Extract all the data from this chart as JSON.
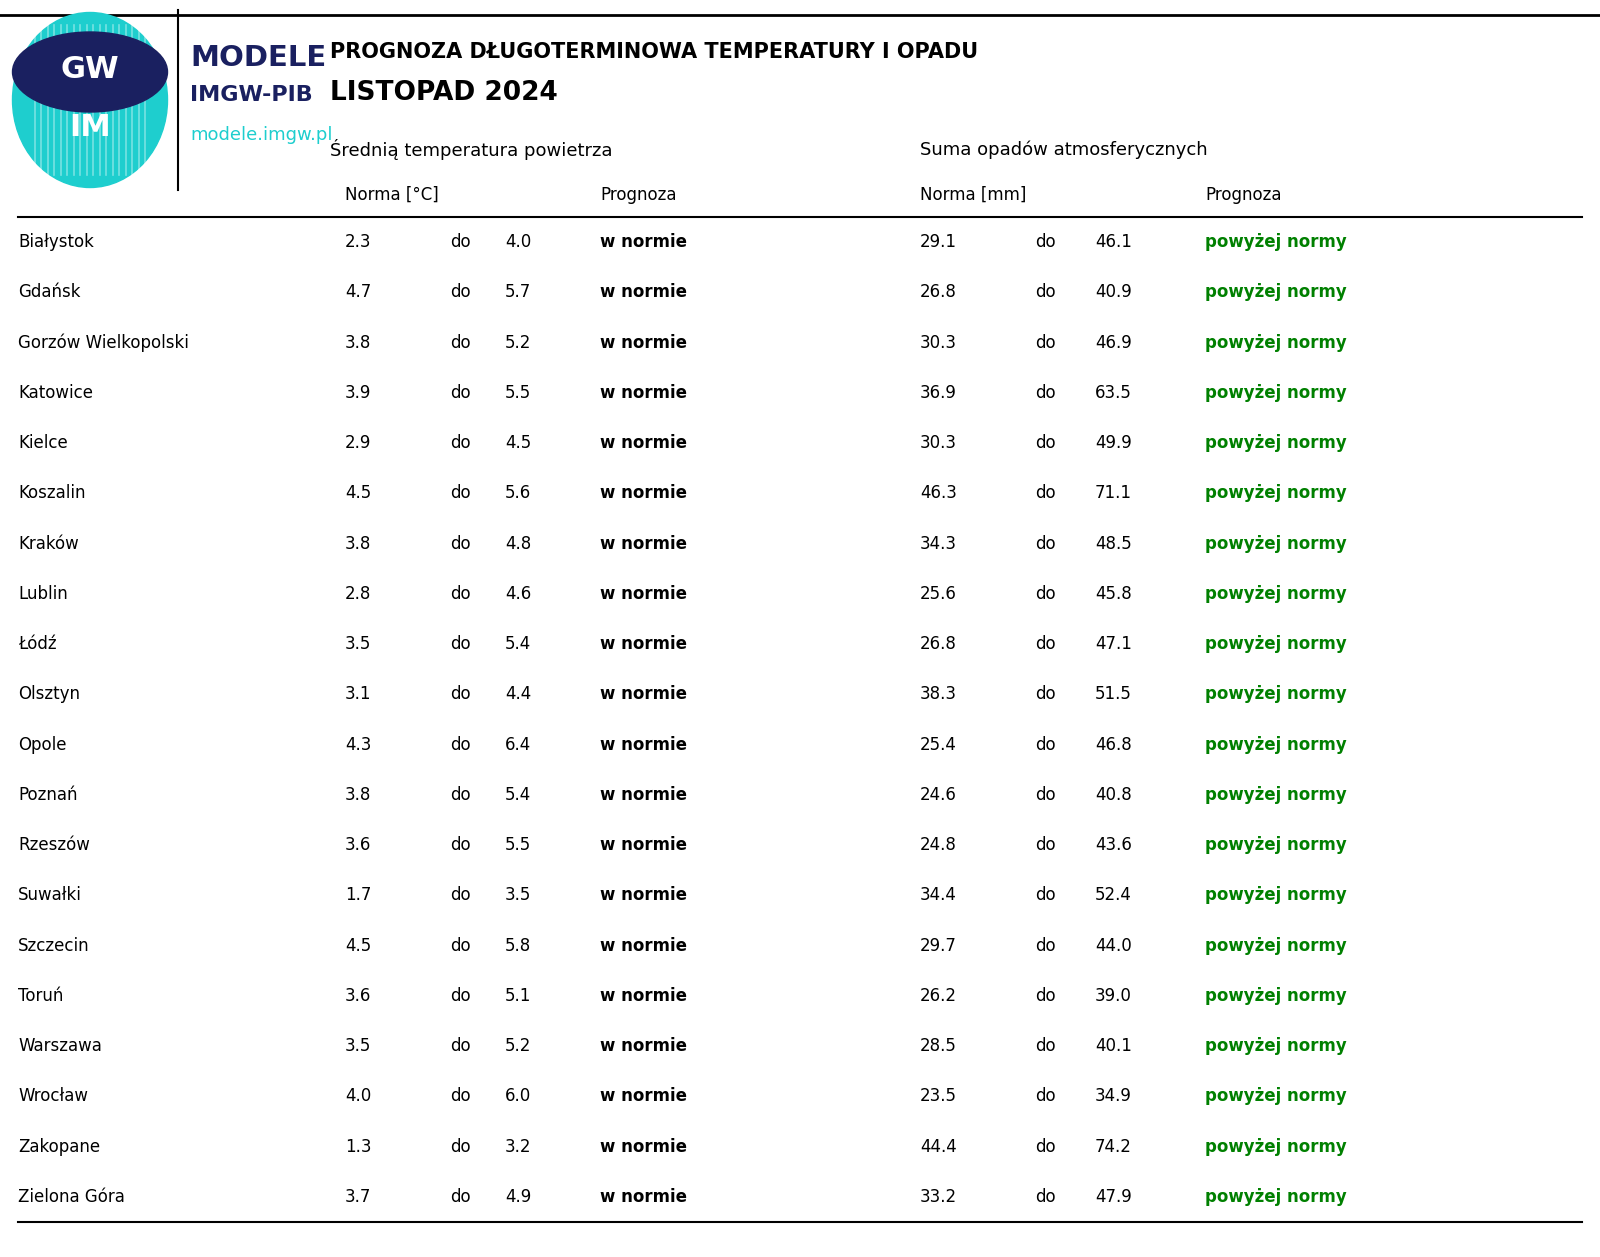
{
  "title_line1": "PROGNOZA DŁUGOTERMINOWA TEMPERATURY I OPADU",
  "title_line2": "LISTOPAD 2024",
  "header_temp": "Średnią temperatura powietrza",
  "header_precip": "Suma opadów atmosferycznych",
  "col_norma_temp": "Norma [°C]",
  "col_prognoza": "Prognoza",
  "col_norma_precip": "Norma [mm]",
  "col_prognoza2": "Prognoza",
  "cities": [
    "Białystok",
    "Gdańsk",
    "Gorzów Wielkopolski",
    "Katowice",
    "Kielce",
    "Koszalin",
    "Kraków",
    "Lublin",
    "Łódź",
    "Olsztyn",
    "Opole",
    "Poznań",
    "Rzeszów",
    "Suwałki",
    "Szczecin",
    "Toruń",
    "Warszawa",
    "Wrocław",
    "Zakopane",
    "Zielona Góra"
  ],
  "temp_low": [
    2.3,
    4.7,
    3.8,
    3.9,
    2.9,
    4.5,
    3.8,
    2.8,
    3.5,
    3.1,
    4.3,
    3.8,
    3.6,
    1.7,
    4.5,
    3.6,
    3.5,
    4.0,
    1.3,
    3.7
  ],
  "temp_high": [
    4.0,
    5.7,
    5.2,
    5.5,
    4.5,
    5.6,
    4.8,
    4.6,
    5.4,
    4.4,
    6.4,
    5.4,
    5.5,
    3.5,
    5.8,
    5.1,
    5.2,
    6.0,
    3.2,
    4.9
  ],
  "temp_prognoza": "w normie",
  "precip_low": [
    29.1,
    26.8,
    30.3,
    36.9,
    30.3,
    46.3,
    34.3,
    25.6,
    26.8,
    38.3,
    25.4,
    24.6,
    24.8,
    34.4,
    29.7,
    26.2,
    28.5,
    23.5,
    44.4,
    33.2
  ],
  "precip_high": [
    46.1,
    40.9,
    46.9,
    63.5,
    49.9,
    71.1,
    48.5,
    45.8,
    47.1,
    51.5,
    46.8,
    40.8,
    43.6,
    52.4,
    44.0,
    39.0,
    40.1,
    34.9,
    74.2,
    47.9
  ],
  "precip_prognoza": "powyżej normy",
  "color_w_normie": "#000000",
  "color_powyzej_normy": "#008000",
  "background": "#ffffff",
  "fs_title1": 15,
  "fs_title2": 19,
  "fs_header": 13,
  "fs_subheader": 12,
  "fs_data": 12,
  "logo_modele": "MODELE",
  "logo_imgw": "IMGW-PIB",
  "logo_url": "modele.imgw.pl"
}
